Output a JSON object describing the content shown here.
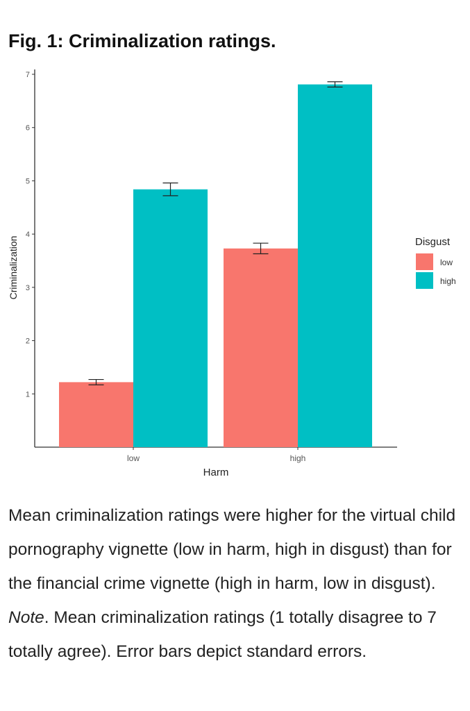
{
  "title": "Fig. 1: Criminalization ratings.",
  "chart_data": {
    "type": "bar",
    "title": "Fig. 1: Criminalization ratings.",
    "xlabel": "Harm",
    "ylabel": "Criminalization",
    "categories": [
      "low",
      "high"
    ],
    "ylim": [
      0,
      7
    ],
    "yticks": [
      1,
      2,
      3,
      4,
      5,
      6,
      7
    ],
    "legend": {
      "title": "Disgust",
      "placement": "right"
    },
    "series": [
      {
        "name": "low",
        "color": "#F8766D",
        "values": [
          1.22,
          3.73
        ],
        "errors": [
          0.05,
          0.1
        ]
      },
      {
        "name": "high",
        "color": "#00BFC4",
        "values": [
          4.84,
          6.81
        ],
        "errors": [
          0.12,
          0.05
        ]
      }
    ]
  },
  "caption": {
    "part1": "Mean criminalization ratings were higher for the virtual child pornography vignette (low in harm, high in disgust) than for the financial crime vignette (high in harm, low in disgust). ",
    "note": "Note",
    "part2": ". Mean criminalization ratings (1 totally disagree to 7 totally agree). Error bars depict standard errors."
  }
}
